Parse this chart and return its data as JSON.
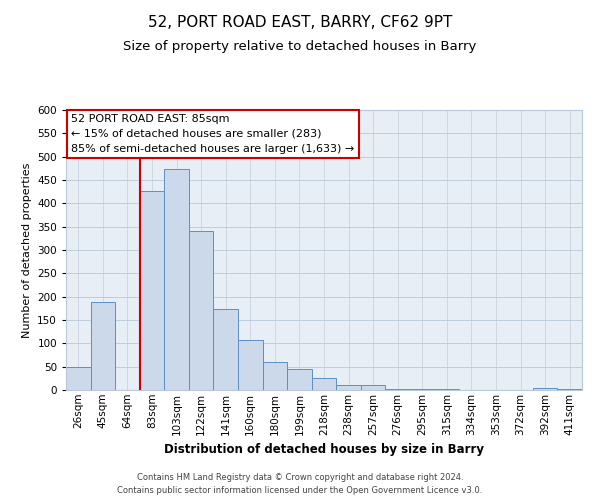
{
  "title": "52, PORT ROAD EAST, BARRY, CF62 9PT",
  "subtitle": "Size of property relative to detached houses in Barry",
  "xlabel": "Distribution of detached houses by size in Barry",
  "ylabel": "Number of detached properties",
  "bar_labels": [
    "26sqm",
    "45sqm",
    "64sqm",
    "83sqm",
    "103sqm",
    "122sqm",
    "141sqm",
    "160sqm",
    "180sqm",
    "199sqm",
    "218sqm",
    "238sqm",
    "257sqm",
    "276sqm",
    "295sqm",
    "315sqm",
    "334sqm",
    "353sqm",
    "372sqm",
    "392sqm",
    "411sqm"
  ],
  "bar_values": [
    50,
    189,
    0,
    427,
    473,
    340,
    173,
    108,
    60,
    44,
    25,
    10,
    10,
    3,
    3,
    3,
    0,
    0,
    0,
    5,
    3
  ],
  "bar_color": "#ccd9ea",
  "bar_edge_color": "#5b8fc4",
  "vline_index": 3,
  "vline_color": "#cc0000",
  "ylim": [
    0,
    600
  ],
  "yticks": [
    0,
    50,
    100,
    150,
    200,
    250,
    300,
    350,
    400,
    450,
    500,
    550,
    600
  ],
  "annotation_title": "52 PORT ROAD EAST: 85sqm",
  "annotation_line1": "← 15% of detached houses are smaller (283)",
  "annotation_line2": "85% of semi-detached houses are larger (1,633) →",
  "annotation_box_color": "#ffffff",
  "annotation_box_edge": "#cc0000",
  "footer_line1": "Contains HM Land Registry data © Crown copyright and database right 2024.",
  "footer_line2": "Contains public sector information licensed under the Open Government Licence v3.0.",
  "bg_color": "#ffffff",
  "plot_bg_color": "#e8eef5",
  "grid_color": "#b8c8d8",
  "title_fontsize": 11,
  "subtitle_fontsize": 9.5,
  "xlabel_fontsize": 8.5,
  "ylabel_fontsize": 8,
  "tick_fontsize": 7.5,
  "annot_fontsize": 8,
  "footer_fontsize": 6
}
